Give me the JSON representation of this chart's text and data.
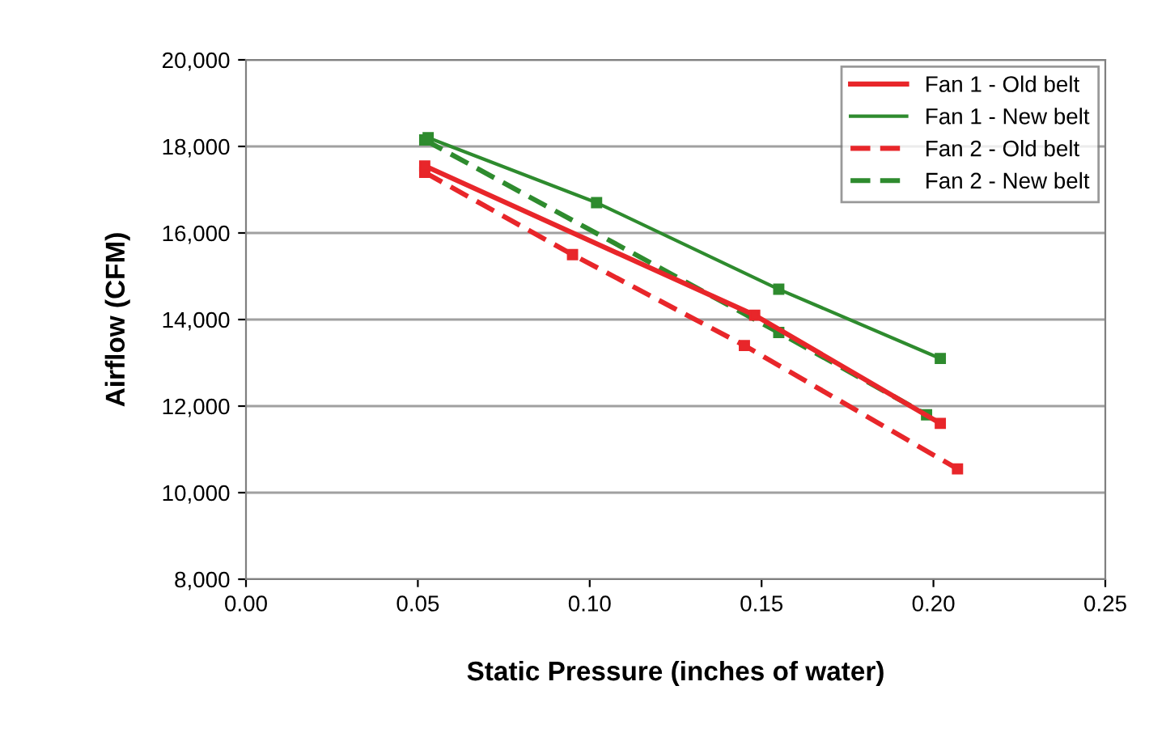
{
  "chart_data": {
    "type": "line",
    "xlabel": "Static Pressure (inches of water)",
    "ylabel": "Airflow (CFM)",
    "xlim": [
      0,
      0.25
    ],
    "xticks": [
      {
        "value": 0,
        "label": "0.00"
      },
      {
        "value": 0.05,
        "label": "0.05"
      },
      {
        "value": 0.1,
        "label": "0.10"
      },
      {
        "value": 0.15,
        "label": "0.15"
      },
      {
        "value": 0.2,
        "label": "0.20"
      },
      {
        "value": 0.25,
        "label": "0.25"
      }
    ],
    "ylim": [
      8000,
      20000
    ],
    "yticks": [
      {
        "value": 8000,
        "label": "8,000"
      },
      {
        "value": 10000,
        "label": "10,000"
      },
      {
        "value": 12000,
        "label": "12,000"
      },
      {
        "value": 14000,
        "label": "14,000"
      },
      {
        "value": 16000,
        "label": "16,000"
      },
      {
        "value": 18000,
        "label": "18,000"
      },
      {
        "value": 20000,
        "label": "20,000"
      }
    ],
    "grid": "y",
    "legend": "top right",
    "marker": "square",
    "series": [
      {
        "name": "Fan 1 - Old belt",
        "color": "#e8262a",
        "line_style": "solid",
        "x": [
          0.052,
          0.148,
          0.202
        ],
        "values": [
          17550,
          14100,
          11600
        ]
      },
      {
        "name": "Fan 1 - New belt",
        "color": "#2e8b2e",
        "line_style": "solid",
        "x": [
          0.053,
          0.102,
          0.155,
          0.202
        ],
        "values": [
          18200,
          16700,
          14700,
          13100
        ]
      },
      {
        "name": "Fan 2 - Old belt",
        "color": "#e8262a",
        "line_style": "dashed",
        "x": [
          0.052,
          0.095,
          0.145,
          0.207
        ],
        "values": [
          17400,
          15500,
          13400,
          10550
        ]
      },
      {
        "name": "Fan 2 - New belt",
        "color": "#2e8b2e",
        "line_style": "dashed",
        "x": [
          0.052,
          0.155,
          0.198
        ],
        "values": [
          18150,
          13700,
          11800
        ]
      }
    ]
  }
}
